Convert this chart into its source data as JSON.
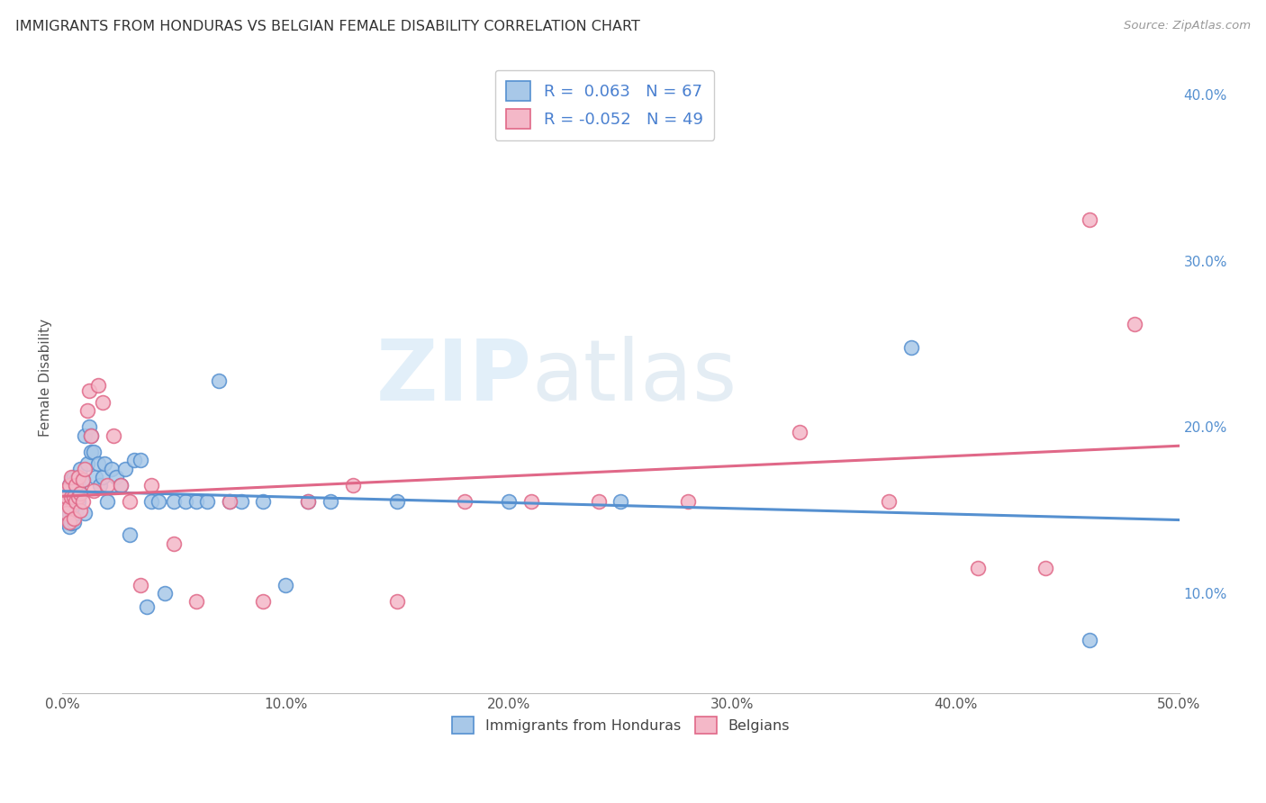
{
  "title": "IMMIGRANTS FROM HONDURAS VS BELGIAN FEMALE DISABILITY CORRELATION CHART",
  "source": "Source: ZipAtlas.com",
  "ylabel": "Female Disability",
  "xlim": [
    0.0,
    0.5
  ],
  "ylim": [
    0.04,
    0.42
  ],
  "xticks": [
    0.0,
    0.1,
    0.2,
    0.3,
    0.4,
    0.5
  ],
  "yticks_right": [
    0.1,
    0.2,
    0.3,
    0.4
  ],
  "ytick_labels_right": [
    "10.0%",
    "20.0%",
    "30.0%",
    "40.0%"
  ],
  "xtick_labels": [
    "0.0%",
    "10.0%",
    "20.0%",
    "30.0%",
    "40.0%",
    "50.0%"
  ],
  "color_blue": "#a8c8e8",
  "color_pink": "#f4b8c8",
  "line_blue": "#5590d0",
  "line_pink": "#e06888",
  "watermark_zip": "ZIP",
  "watermark_atlas": "atlas",
  "R1": 0.063,
  "N1": 67,
  "R2": -0.052,
  "N2": 49,
  "blue_x": [
    0.001,
    0.001,
    0.001,
    0.002,
    0.002,
    0.002,
    0.002,
    0.003,
    0.003,
    0.003,
    0.003,
    0.004,
    0.004,
    0.004,
    0.004,
    0.005,
    0.005,
    0.005,
    0.005,
    0.006,
    0.006,
    0.006,
    0.007,
    0.007,
    0.008,
    0.008,
    0.009,
    0.01,
    0.01,
    0.011,
    0.012,
    0.013,
    0.013,
    0.014,
    0.015,
    0.016,
    0.017,
    0.018,
    0.019,
    0.02,
    0.022,
    0.024,
    0.026,
    0.028,
    0.03,
    0.032,
    0.035,
    0.038,
    0.04,
    0.043,
    0.046,
    0.05,
    0.055,
    0.06,
    0.065,
    0.07,
    0.075,
    0.08,
    0.09,
    0.1,
    0.11,
    0.12,
    0.15,
    0.2,
    0.25,
    0.38,
    0.46
  ],
  "blue_y": [
    0.148,
    0.153,
    0.158,
    0.143,
    0.148,
    0.155,
    0.162,
    0.14,
    0.148,
    0.155,
    0.165,
    0.142,
    0.15,
    0.158,
    0.168,
    0.143,
    0.152,
    0.16,
    0.17,
    0.148,
    0.158,
    0.168,
    0.155,
    0.165,
    0.16,
    0.175,
    0.168,
    0.148,
    0.195,
    0.178,
    0.2,
    0.185,
    0.195,
    0.185,
    0.17,
    0.178,
    0.165,
    0.17,
    0.178,
    0.155,
    0.175,
    0.17,
    0.165,
    0.175,
    0.135,
    0.18,
    0.18,
    0.092,
    0.155,
    0.155,
    0.1,
    0.155,
    0.155,
    0.155,
    0.155,
    0.228,
    0.155,
    0.155,
    0.155,
    0.105,
    0.155,
    0.155,
    0.155,
    0.155,
    0.155,
    0.248,
    0.072
  ],
  "pink_x": [
    0.001,
    0.001,
    0.002,
    0.002,
    0.003,
    0.003,
    0.003,
    0.004,
    0.004,
    0.005,
    0.005,
    0.006,
    0.006,
    0.007,
    0.007,
    0.008,
    0.008,
    0.009,
    0.009,
    0.01,
    0.011,
    0.012,
    0.013,
    0.014,
    0.016,
    0.018,
    0.02,
    0.023,
    0.026,
    0.03,
    0.035,
    0.04,
    0.05,
    0.06,
    0.075,
    0.09,
    0.11,
    0.13,
    0.15,
    0.18,
    0.21,
    0.24,
    0.28,
    0.33,
    0.37,
    0.41,
    0.44,
    0.46,
    0.48
  ],
  "pink_y": [
    0.155,
    0.162,
    0.148,
    0.158,
    0.143,
    0.152,
    0.165,
    0.158,
    0.17,
    0.145,
    0.158,
    0.155,
    0.165,
    0.158,
    0.17,
    0.15,
    0.16,
    0.155,
    0.168,
    0.175,
    0.21,
    0.222,
    0.195,
    0.162,
    0.225,
    0.215,
    0.165,
    0.195,
    0.165,
    0.155,
    0.105,
    0.165,
    0.13,
    0.095,
    0.155,
    0.095,
    0.155,
    0.165,
    0.095,
    0.155,
    0.155,
    0.155,
    0.155,
    0.197,
    0.155,
    0.115,
    0.115,
    0.325,
    0.262
  ]
}
